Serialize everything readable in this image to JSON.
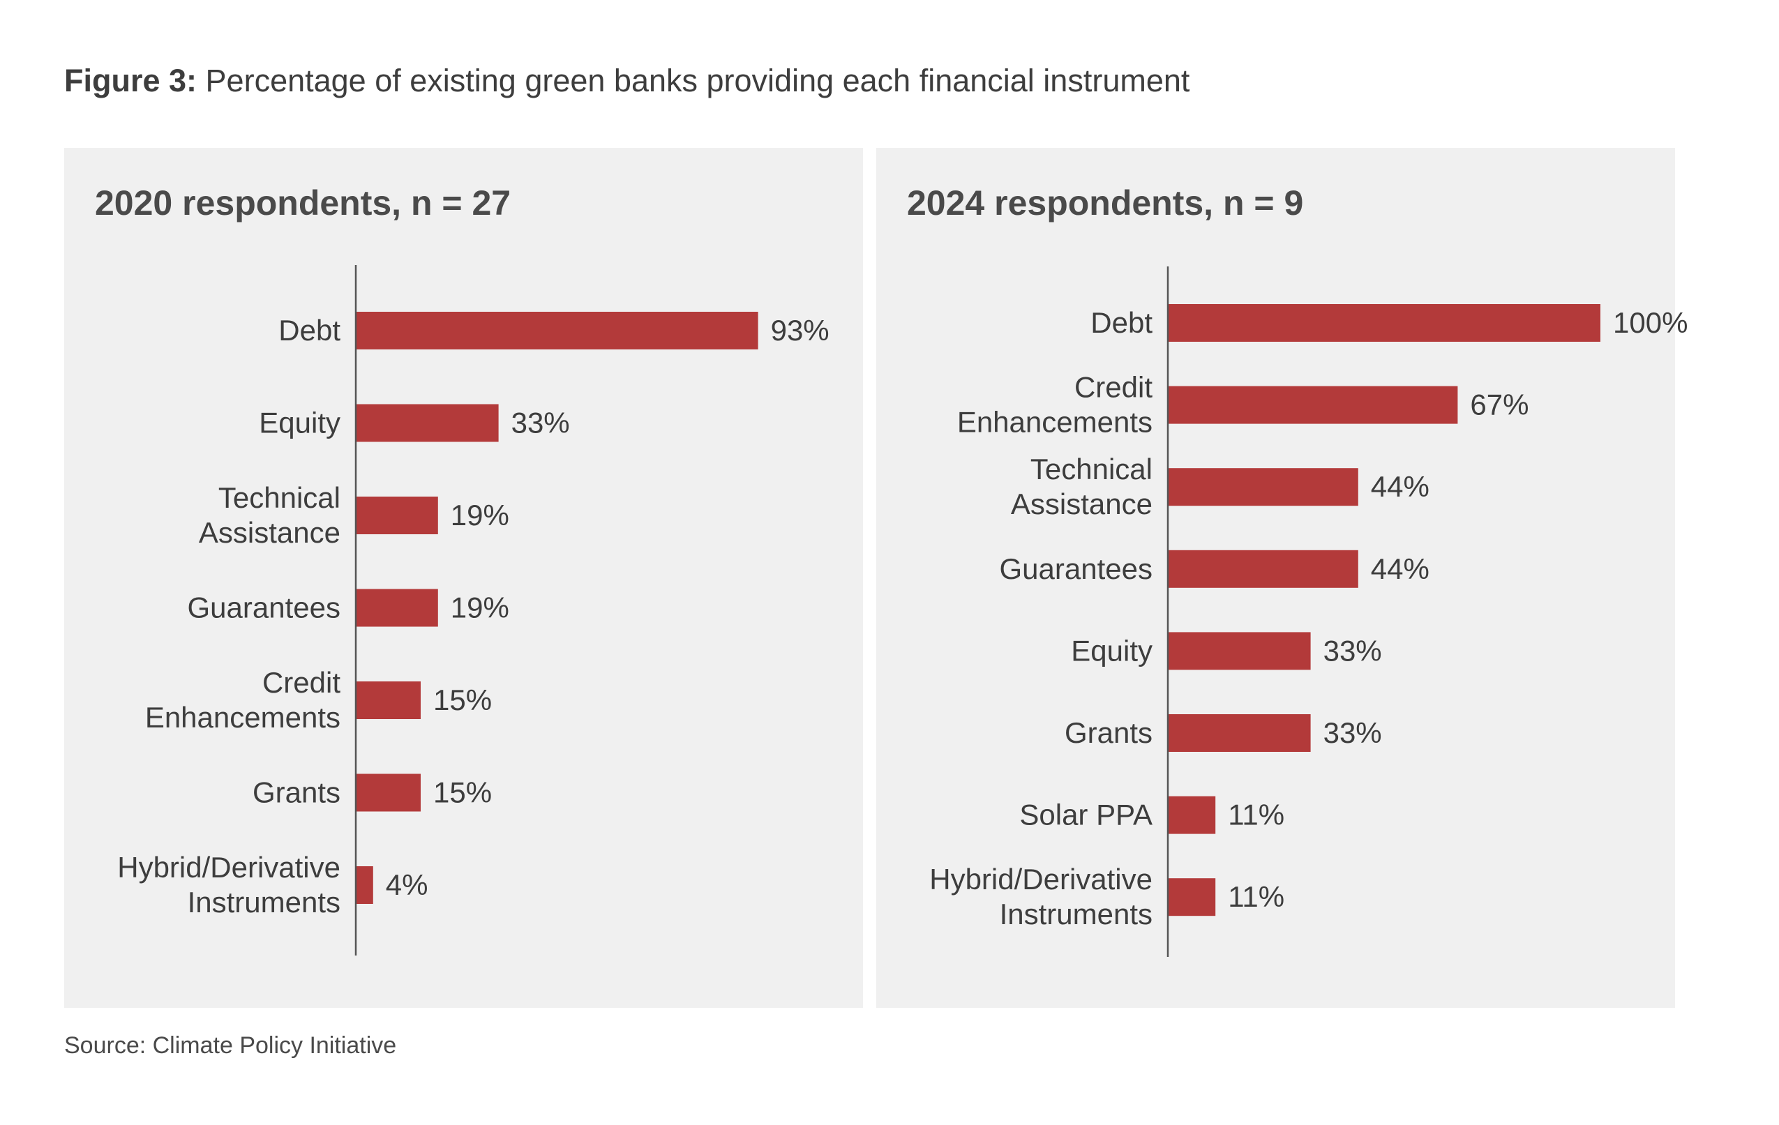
{
  "figure": {
    "label": "Figure 3:",
    "title": "Percentage of existing green banks providing each financial instrument",
    "source": "Source: Climate Policy Initiative"
  },
  "colors": {
    "bar": "#b33a3a",
    "panel": "#f0f0f0",
    "text": "#3d3d3d",
    "axis": "#555555"
  },
  "chart_data": [
    {
      "type": "bar",
      "orientation": "horizontal",
      "title": "2020 respondents, n = 27",
      "categories": [
        [
          "Debt"
        ],
        [
          "Equity"
        ],
        [
          "Technical",
          "Assistance"
        ],
        [
          "Guarantees"
        ],
        [
          "Credit",
          "Enhancements"
        ],
        [
          "Grants"
        ],
        [
          "Hybrid/Derivative",
          "Instruments"
        ]
      ],
      "values": [
        93,
        33,
        19,
        19,
        15,
        15,
        4
      ],
      "value_labels": [
        "93%",
        "33%",
        "19%",
        "19%",
        "15%",
        "15%",
        "4%"
      ],
      "unit": "%",
      "xlim": [
        0,
        100
      ]
    },
    {
      "type": "bar",
      "orientation": "horizontal",
      "title": "2024 respondents, n = 9",
      "categories": [
        [
          "Debt"
        ],
        [
          "Credit",
          "Enhancements"
        ],
        [
          "Technical",
          "Assistance"
        ],
        [
          "Guarantees"
        ],
        [
          "Equity"
        ],
        [
          "Grants"
        ],
        [
          "Solar PPA"
        ],
        [
          "Hybrid/Derivative",
          "Instruments"
        ]
      ],
      "values": [
        100,
        67,
        44,
        44,
        33,
        33,
        11,
        11
      ],
      "value_labels": [
        "100%",
        "67%",
        "44%",
        "44%",
        "33%",
        "33%",
        "11%",
        "11%"
      ],
      "unit": "%",
      "xlim": [
        0,
        100
      ]
    }
  ]
}
